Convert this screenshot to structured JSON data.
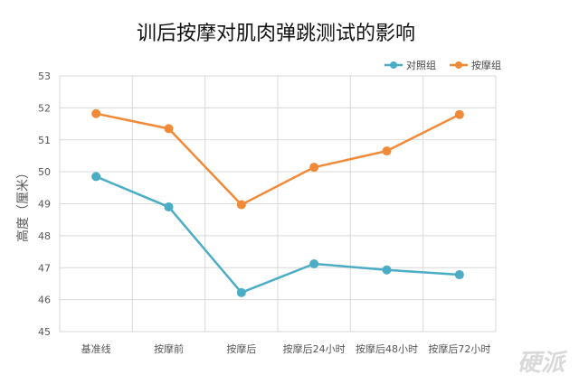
{
  "chart_data": {
    "type": "line",
    "title": "训后按摩对肌肉弹跳测试的影响",
    "xlabel": "",
    "ylabel": "高度（厘米）",
    "categories": [
      "基准线",
      "按摩前",
      "按摩后",
      "按摩后24小时",
      "按摩后48小时",
      "按摩后72小时"
    ],
    "ylim": [
      45,
      53
    ],
    "yticks": [
      45,
      46,
      47,
      48,
      49,
      50,
      51,
      52,
      53
    ],
    "grid": true,
    "legend_position": "top-right",
    "series": [
      {
        "name": "对照组",
        "color": "#4bacc6",
        "values": [
          49.85,
          48.9,
          46.22,
          47.12,
          46.93,
          46.78
        ]
      },
      {
        "name": "按摩组",
        "color": "#f08a38",
        "values": [
          51.82,
          51.35,
          48.97,
          50.14,
          50.65,
          51.79
        ]
      }
    ]
  },
  "watermark": "硬派"
}
